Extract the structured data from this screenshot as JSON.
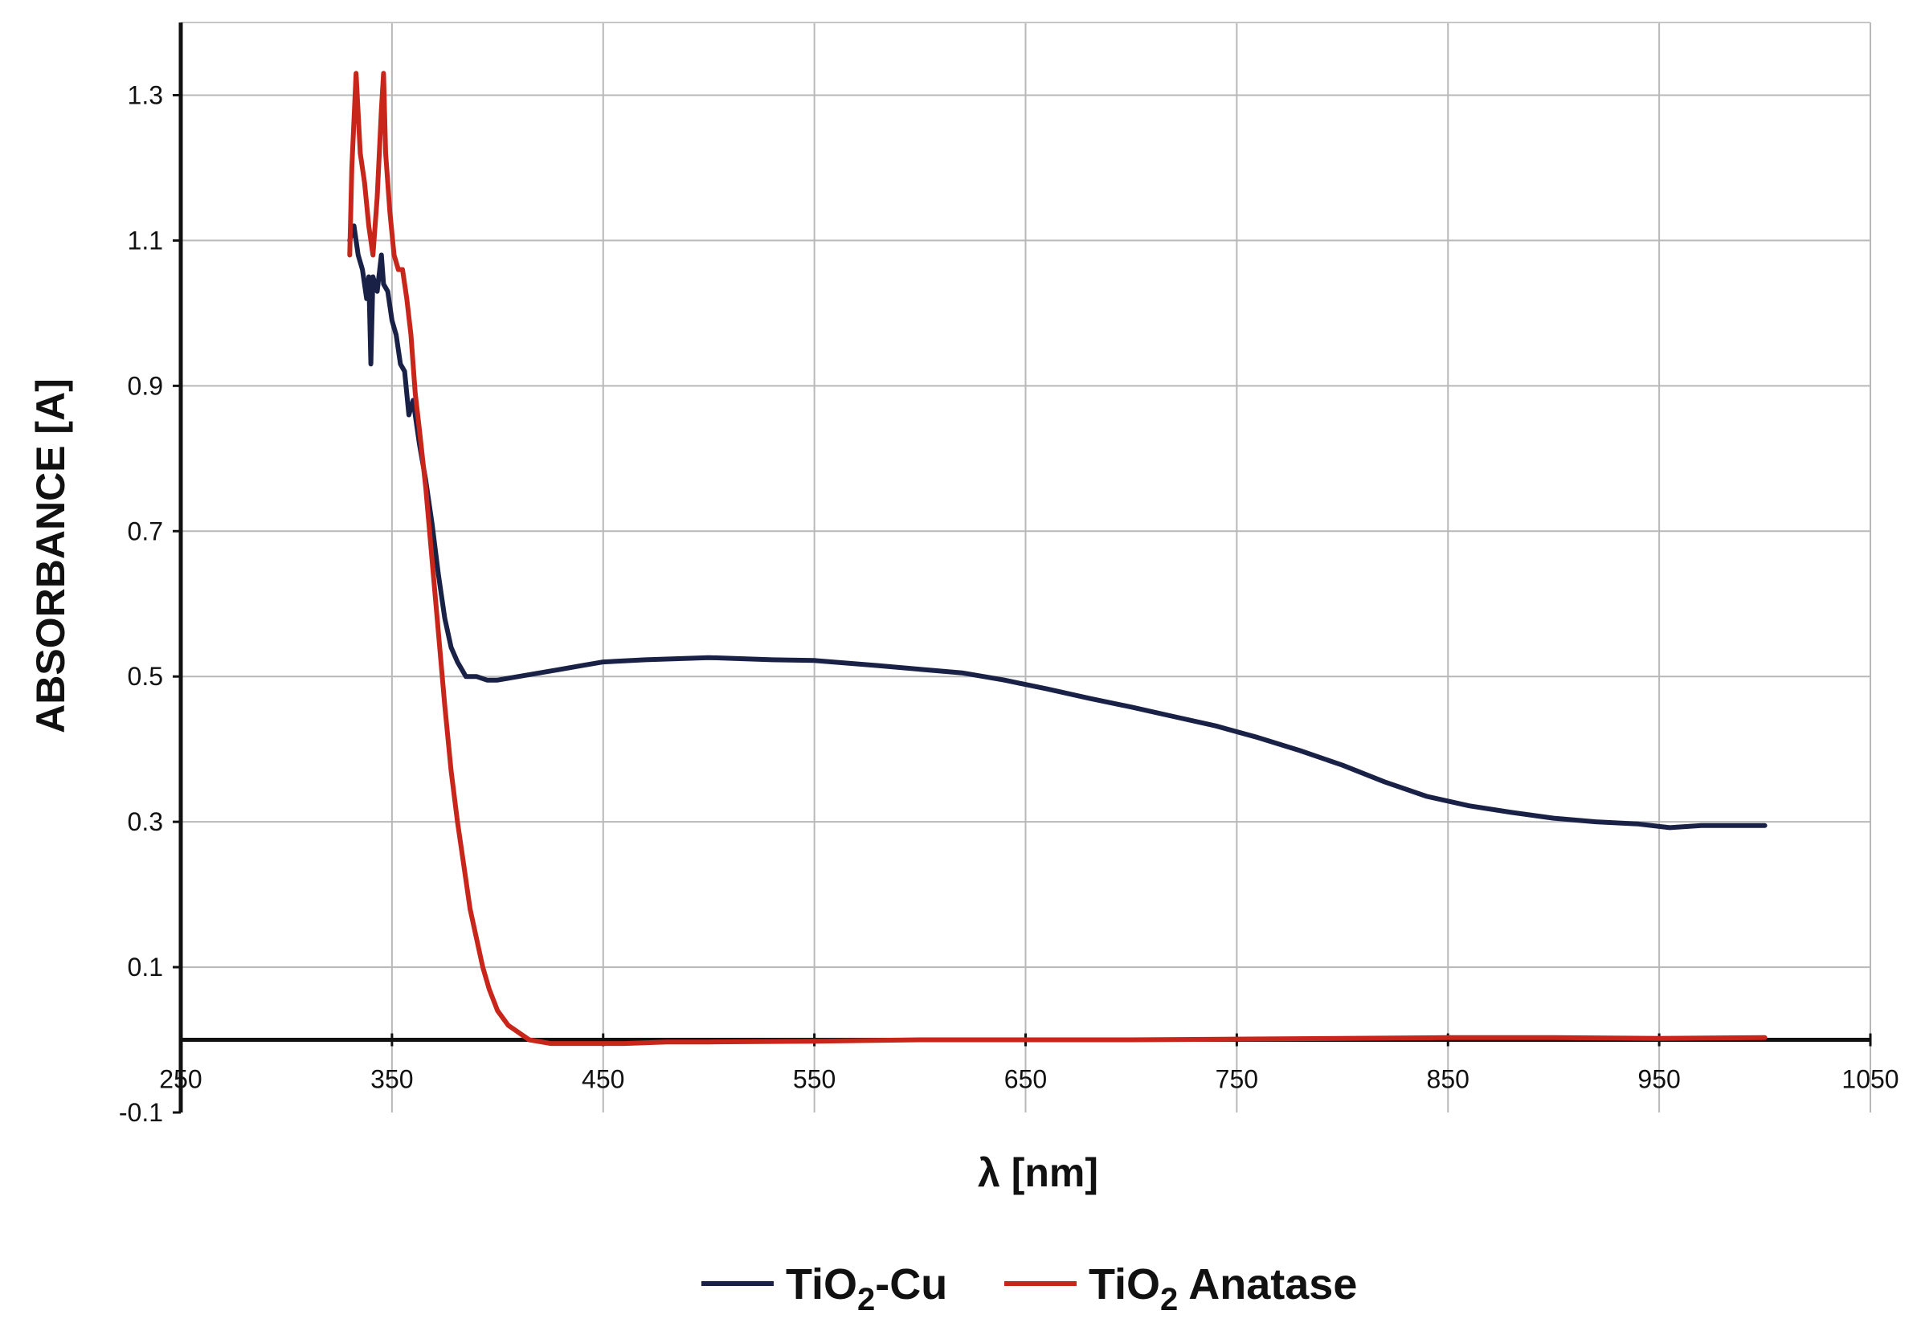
{
  "chart_data": {
    "type": "line",
    "title": "",
    "xlabel": "λ [nm]",
    "ylabel": "ABSORBANCE [A]",
    "xlim": [
      250,
      1050
    ],
    "ylim": [
      -0.1,
      1.4
    ],
    "x_ticks": [
      "250",
      "350",
      "450",
      "550",
      "650",
      "750",
      "850",
      "950",
      "1050"
    ],
    "y_ticks": [
      "1.3",
      "1.1",
      "0.9",
      "0.7",
      "0.5",
      "0.3",
      "0.1",
      "-0.1"
    ],
    "grid": true,
    "legend_position": "bottom-center",
    "series": [
      {
        "name": "TiO2-Cu",
        "legend_parts": [
          "TiO",
          "2",
          "-Cu"
        ],
        "color": "#1a2147",
        "points": [
          [
            330,
            1.1
          ],
          [
            332,
            1.12
          ],
          [
            334,
            1.08
          ],
          [
            336,
            1.06
          ],
          [
            338,
            1.02
          ],
          [
            339,
            1.05
          ],
          [
            340,
            0.93
          ],
          [
            341,
            1.05
          ],
          [
            343,
            1.03
          ],
          [
            345,
            1.08
          ],
          [
            346,
            1.04
          ],
          [
            348,
            1.03
          ],
          [
            350,
            0.99
          ],
          [
            352,
            0.97
          ],
          [
            354,
            0.93
          ],
          [
            356,
            0.92
          ],
          [
            358,
            0.86
          ],
          [
            360,
            0.88
          ],
          [
            363,
            0.82
          ],
          [
            366,
            0.77
          ],
          [
            369,
            0.71
          ],
          [
            372,
            0.64
          ],
          [
            375,
            0.58
          ],
          [
            378,
            0.54
          ],
          [
            381,
            0.52
          ],
          [
            385,
            0.5
          ],
          [
            390,
            0.5
          ],
          [
            395,
            0.495
          ],
          [
            400,
            0.495
          ],
          [
            410,
            0.5
          ],
          [
            420,
            0.505
          ],
          [
            430,
            0.51
          ],
          [
            440,
            0.515
          ],
          [
            450,
            0.52
          ],
          [
            470,
            0.523
          ],
          [
            500,
            0.526
          ],
          [
            530,
            0.523
          ],
          [
            550,
            0.522
          ],
          [
            580,
            0.515
          ],
          [
            600,
            0.51
          ],
          [
            620,
            0.505
          ],
          [
            640,
            0.495
          ],
          [
            660,
            0.483
          ],
          [
            680,
            0.47
          ],
          [
            700,
            0.458
          ],
          [
            720,
            0.445
          ],
          [
            740,
            0.432
          ],
          [
            760,
            0.416
          ],
          [
            780,
            0.398
          ],
          [
            800,
            0.378
          ],
          [
            820,
            0.355
          ],
          [
            840,
            0.335
          ],
          [
            860,
            0.322
          ],
          [
            880,
            0.313
          ],
          [
            900,
            0.305
          ],
          [
            920,
            0.3
          ],
          [
            940,
            0.297
          ],
          [
            955,
            0.292
          ],
          [
            970,
            0.295
          ],
          [
            985,
            0.295
          ],
          [
            1000,
            0.295
          ]
        ]
      },
      {
        "name": "TiO2 Anatase",
        "legend_parts": [
          "TiO",
          "2",
          " Anatase"
        ],
        "color": "#c8261a",
        "points": [
          [
            330,
            1.08
          ],
          [
            331,
            1.2
          ],
          [
            333,
            1.33
          ],
          [
            335,
            1.22
          ],
          [
            337,
            1.18
          ],
          [
            339,
            1.12
          ],
          [
            341,
            1.08
          ],
          [
            343,
            1.16
          ],
          [
            345,
            1.28
          ],
          [
            346,
            1.33
          ],
          [
            347,
            1.22
          ],
          [
            349,
            1.14
          ],
          [
            351,
            1.08
          ],
          [
            353,
            1.06
          ],
          [
            355,
            1.06
          ],
          [
            357,
            1.02
          ],
          [
            359,
            0.97
          ],
          [
            361,
            0.89
          ],
          [
            363,
            0.84
          ],
          [
            366,
            0.76
          ],
          [
            369,
            0.66
          ],
          [
            372,
            0.56
          ],
          [
            375,
            0.46
          ],
          [
            378,
            0.37
          ],
          [
            381,
            0.3
          ],
          [
            384,
            0.24
          ],
          [
            387,
            0.18
          ],
          [
            390,
            0.14
          ],
          [
            393,
            0.1
          ],
          [
            396,
            0.07
          ],
          [
            400,
            0.04
          ],
          [
            405,
            0.02
          ],
          [
            410,
            0.01
          ],
          [
            415,
            0.0
          ],
          [
            425,
            -0.005
          ],
          [
            440,
            -0.005
          ],
          [
            460,
            -0.005
          ],
          [
            480,
            -0.003
          ],
          [
            500,
            -0.003
          ],
          [
            550,
            -0.002
          ],
          [
            600,
            0.0
          ],
          [
            650,
            0.0
          ],
          [
            700,
            0.0
          ],
          [
            750,
            0.001
          ],
          [
            800,
            0.002
          ],
          [
            850,
            0.003
          ],
          [
            900,
            0.003
          ],
          [
            950,
            0.002
          ],
          [
            1000,
            0.003
          ]
        ]
      }
    ]
  }
}
